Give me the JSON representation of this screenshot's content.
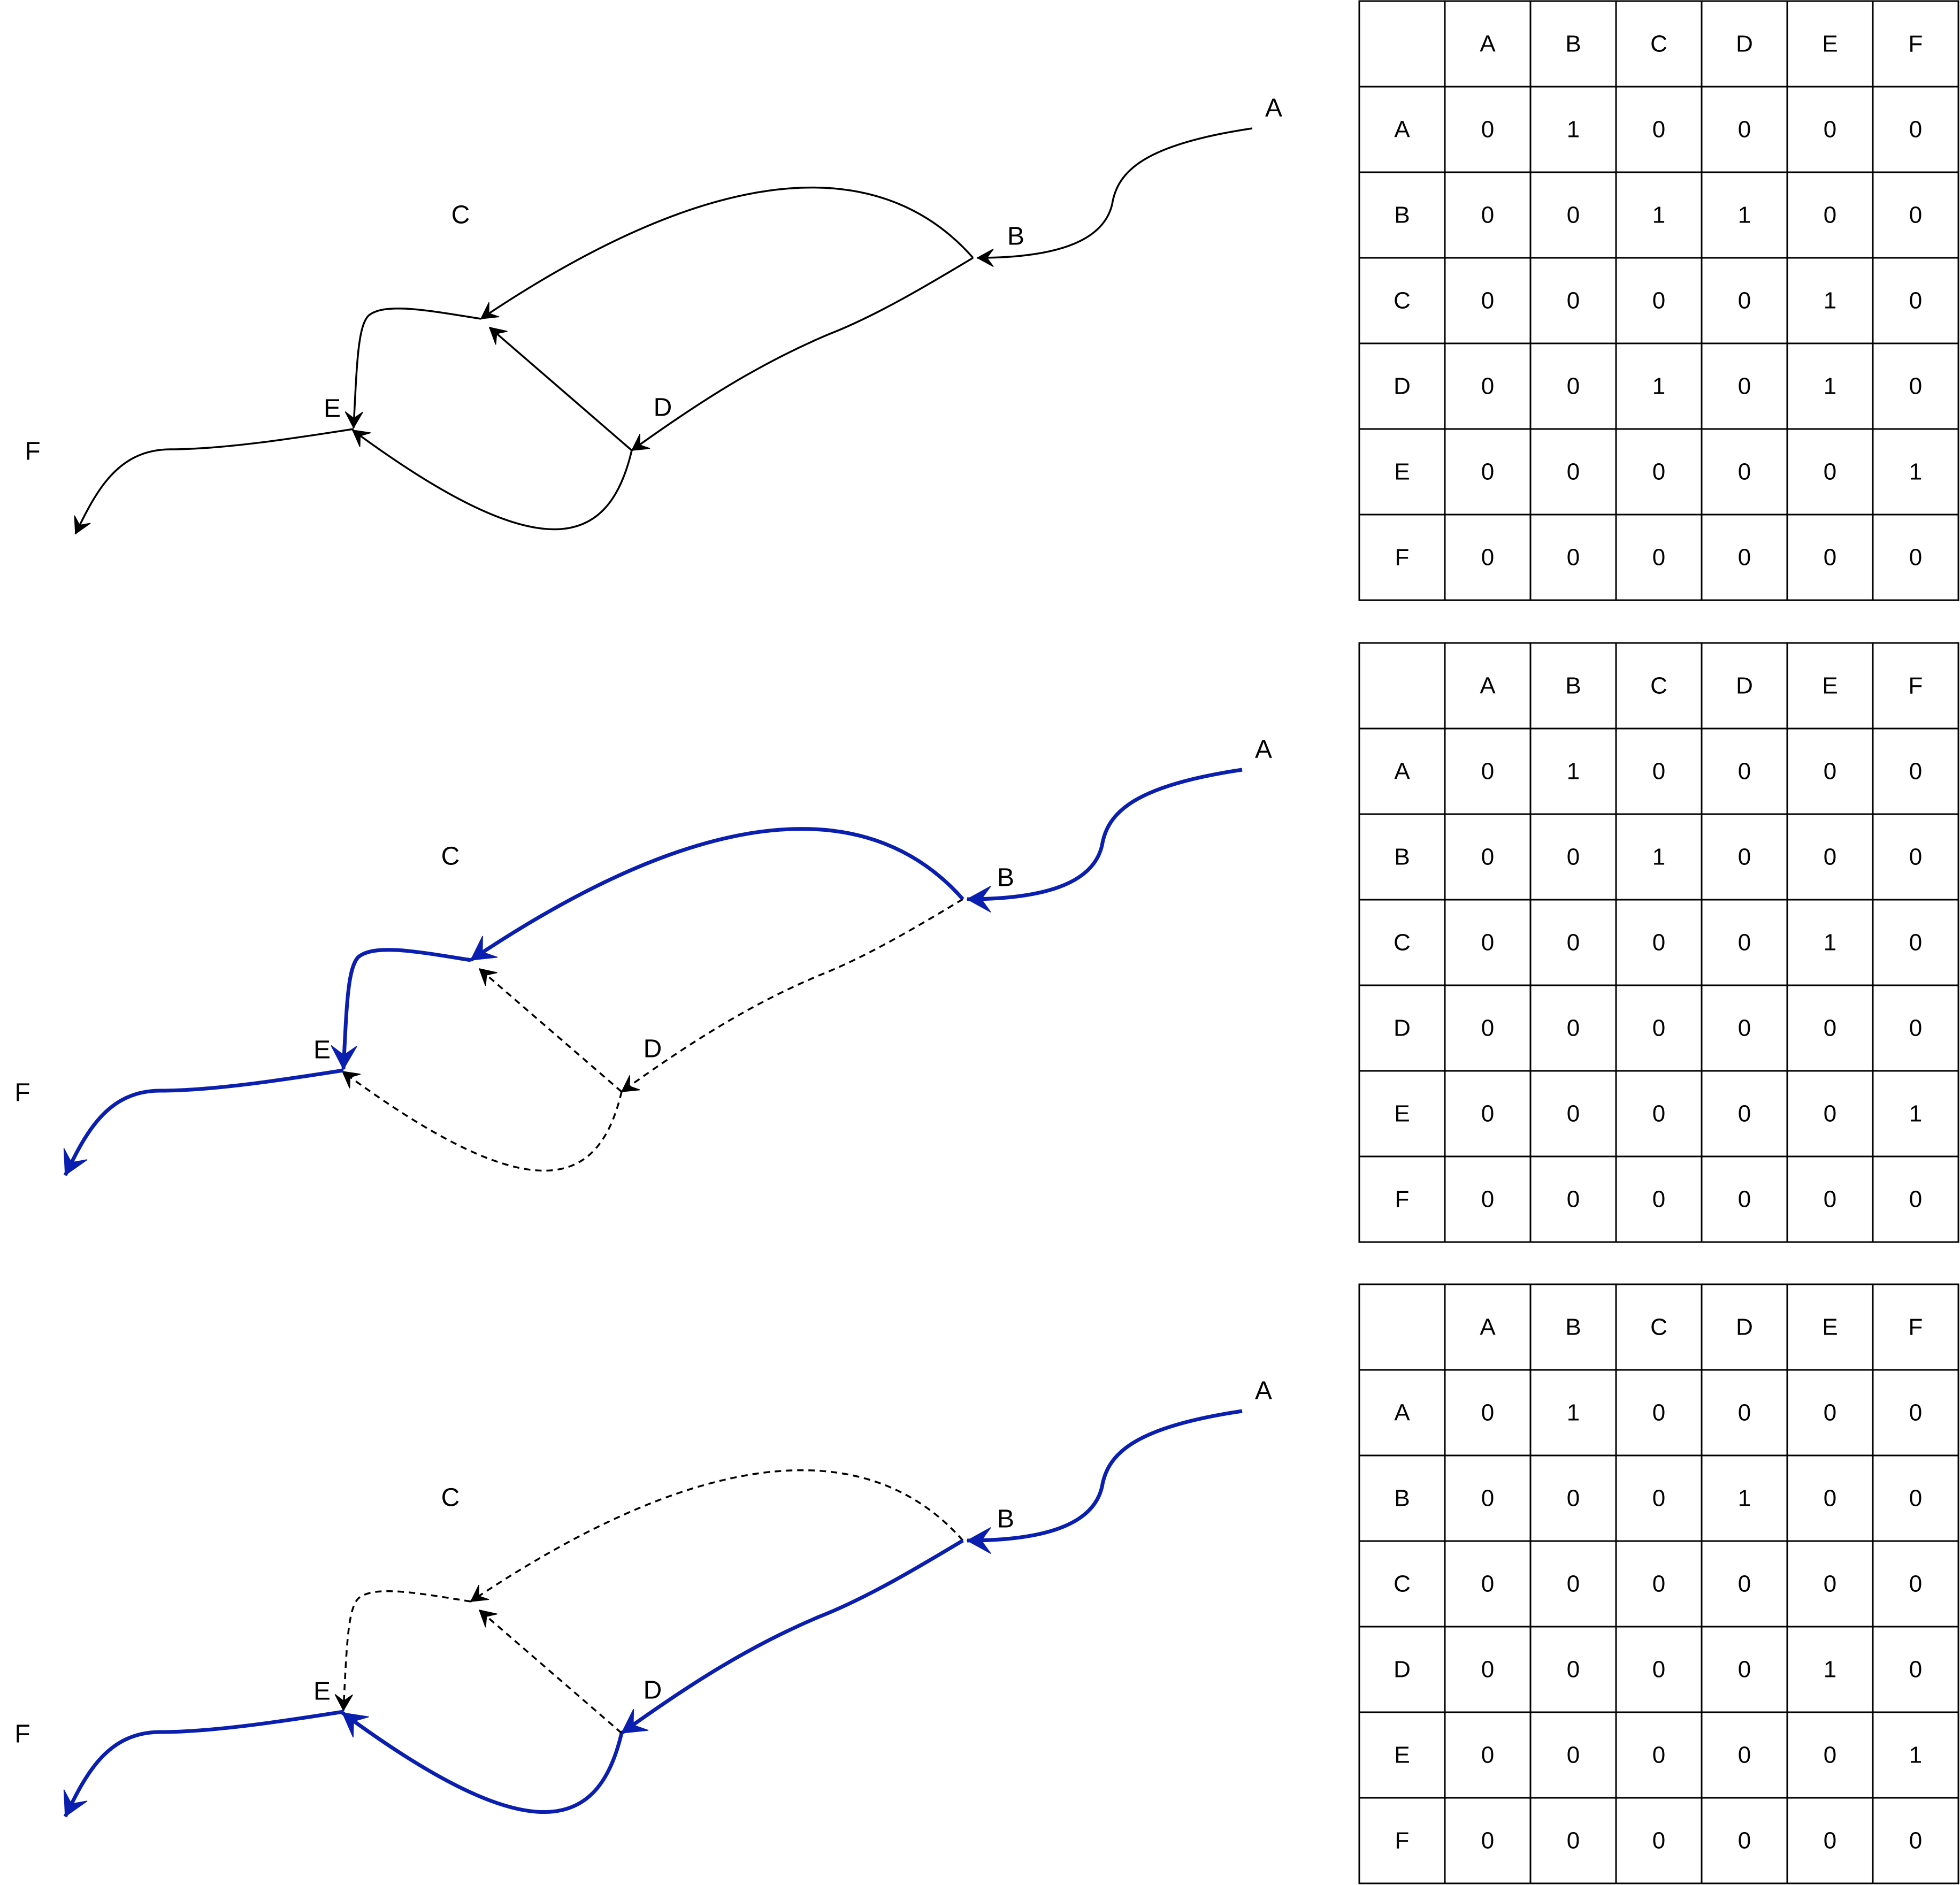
{
  "colors": {
    "default_edge": "#000000",
    "highlight_edge": "#0a1fb0",
    "grid": "#000000",
    "text": "#000000"
  },
  "panels": [
    {
      "name": "panel-1",
      "nodes": {
        "A": {
          "label": "A"
        },
        "B": {
          "label": "B"
        },
        "C": {
          "label": "C"
        },
        "D": {
          "label": "D"
        },
        "E": {
          "label": "E"
        },
        "F": {
          "label": "F"
        }
      },
      "edges": [
        {
          "from": "A",
          "to": "B",
          "style": "normal"
        },
        {
          "from": "B",
          "to": "C",
          "style": "normal"
        },
        {
          "from": "B",
          "to": "D",
          "style": "normal"
        },
        {
          "from": "D",
          "to": "C",
          "style": "normal"
        },
        {
          "from": "D",
          "to": "E",
          "style": "normal"
        },
        {
          "from": "C",
          "to": "E",
          "style": "normal"
        },
        {
          "from": "E",
          "to": "F",
          "style": "normal"
        }
      ],
      "matrix": {
        "headers": [
          "A",
          "B",
          "C",
          "D",
          "E",
          "F"
        ],
        "rows": [
          {
            "label": "A",
            "values": [
              "0",
              "1",
              "0",
              "0",
              "0",
              "0"
            ]
          },
          {
            "label": "B",
            "values": [
              "0",
              "0",
              "1",
              "1",
              "0",
              "0"
            ]
          },
          {
            "label": "C",
            "values": [
              "0",
              "0",
              "0",
              "0",
              "1",
              "0"
            ]
          },
          {
            "label": "D",
            "values": [
              "0",
              "0",
              "1",
              "0",
              "1",
              "0"
            ]
          },
          {
            "label": "E",
            "values": [
              "0",
              "0",
              "0",
              "0",
              "0",
              "1"
            ]
          },
          {
            "label": "F",
            "values": [
              "0",
              "0",
              "0",
              "0",
              "0",
              "0"
            ]
          }
        ]
      }
    },
    {
      "name": "panel-2",
      "nodes": {
        "A": {
          "label": "A"
        },
        "B": {
          "label": "B"
        },
        "C": {
          "label": "C"
        },
        "D": {
          "label": "D"
        },
        "E": {
          "label": "E"
        },
        "F": {
          "label": "F"
        }
      },
      "edges": [
        {
          "from": "A",
          "to": "B",
          "style": "bold"
        },
        {
          "from": "B",
          "to": "C",
          "style": "bold"
        },
        {
          "from": "B",
          "to": "D",
          "style": "dashed"
        },
        {
          "from": "D",
          "to": "C",
          "style": "dashed"
        },
        {
          "from": "D",
          "to": "E",
          "style": "dashed"
        },
        {
          "from": "C",
          "to": "E",
          "style": "bold"
        },
        {
          "from": "E",
          "to": "F",
          "style": "bold"
        }
      ],
      "matrix": {
        "headers": [
          "A",
          "B",
          "C",
          "D",
          "E",
          "F"
        ],
        "rows": [
          {
            "label": "A",
            "values": [
              "0",
              "1",
              "0",
              "0",
              "0",
              "0"
            ]
          },
          {
            "label": "B",
            "values": [
              "0",
              "0",
              "1",
              "0",
              "0",
              "0"
            ]
          },
          {
            "label": "C",
            "values": [
              "0",
              "0",
              "0",
              "0",
              "1",
              "0"
            ]
          },
          {
            "label": "D",
            "values": [
              "0",
              "0",
              "0",
              "0",
              "0",
              "0"
            ]
          },
          {
            "label": "E",
            "values": [
              "0",
              "0",
              "0",
              "0",
              "0",
              "1"
            ]
          },
          {
            "label": "F",
            "values": [
              "0",
              "0",
              "0",
              "0",
              "0",
              "0"
            ]
          }
        ]
      }
    },
    {
      "name": "panel-3",
      "nodes": {
        "A": {
          "label": "A"
        },
        "B": {
          "label": "B"
        },
        "C": {
          "label": "C"
        },
        "D": {
          "label": "D"
        },
        "E": {
          "label": "E"
        },
        "F": {
          "label": "F"
        }
      },
      "edges": [
        {
          "from": "A",
          "to": "B",
          "style": "bold"
        },
        {
          "from": "B",
          "to": "C",
          "style": "dashed"
        },
        {
          "from": "B",
          "to": "D",
          "style": "bold"
        },
        {
          "from": "D",
          "to": "C",
          "style": "dashed"
        },
        {
          "from": "D",
          "to": "E",
          "style": "bold"
        },
        {
          "from": "C",
          "to": "E",
          "style": "dashed"
        },
        {
          "from": "E",
          "to": "F",
          "style": "bold"
        }
      ],
      "matrix": {
        "headers": [
          "A",
          "B",
          "C",
          "D",
          "E",
          "F"
        ],
        "rows": [
          {
            "label": "A",
            "values": [
              "0",
              "1",
              "0",
              "0",
              "0",
              "0"
            ]
          },
          {
            "label": "B",
            "values": [
              "0",
              "0",
              "0",
              "1",
              "0",
              "0"
            ]
          },
          {
            "label": "C",
            "values": [
              "0",
              "0",
              "0",
              "0",
              "0",
              "0"
            ]
          },
          {
            "label": "D",
            "values": [
              "0",
              "0",
              "0",
              "0",
              "1",
              "0"
            ]
          },
          {
            "label": "E",
            "values": [
              "0",
              "0",
              "0",
              "0",
              "0",
              "1"
            ]
          },
          {
            "label": "F",
            "values": [
              "0",
              "0",
              "0",
              "0",
              "0",
              "0"
            ]
          }
        ]
      }
    }
  ]
}
